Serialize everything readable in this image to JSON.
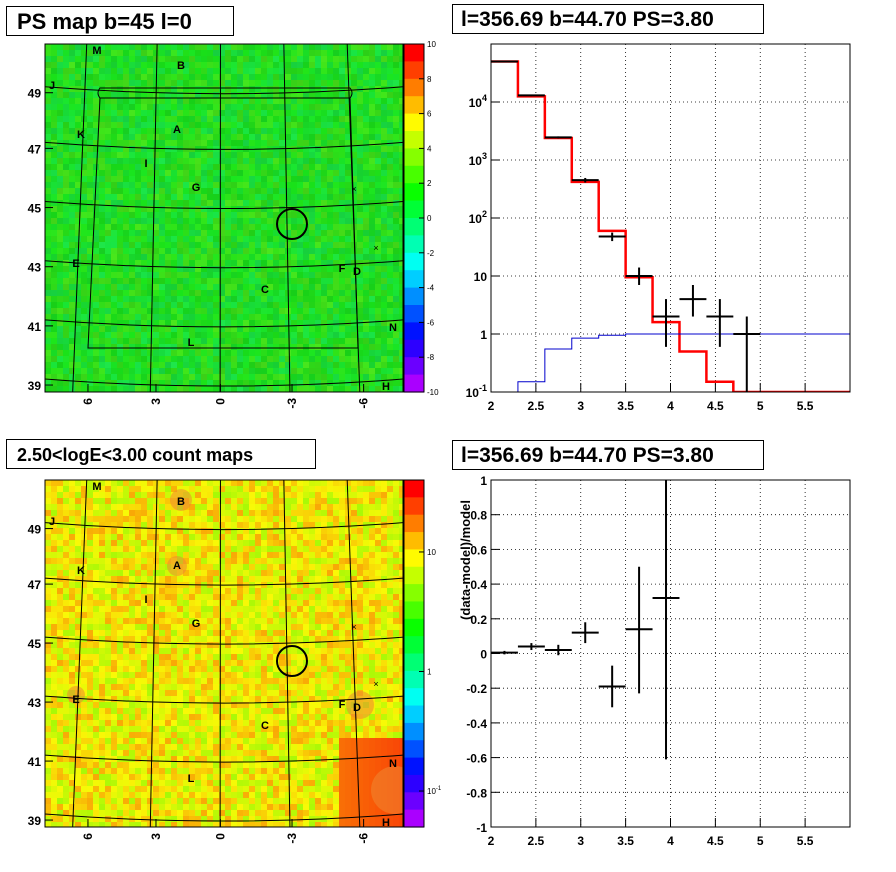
{
  "panels": {
    "ps_map_title": "PS map b=45 l=0",
    "spectrum_title": "l=356.69 b=44.70 PS=3.80",
    "count_map_title": "2.50<logE<3.00 count maps",
    "residual_title": "l=356.69 b=44.70 PS=3.80"
  },
  "colors": {
    "model": "#ff0000",
    "background": "#0000cc",
    "data": "#000000",
    "ps_map_fill": "#22ee44",
    "count_map_fill": "#bbee22"
  },
  "chart_data": [
    {
      "type": "heatmap",
      "title": "PS map b=45 l=0",
      "x_ticks": [
        "6",
        "3",
        "0",
        "-3",
        "-6"
      ],
      "y_ticks": [
        "49",
        "47",
        "45",
        "43",
        "41",
        "39"
      ],
      "colorbar": {
        "scale": "linear",
        "range": [
          -10,
          10
        ],
        "ticks": [
          "10",
          "8",
          "6",
          "4",
          "2",
          "0",
          "-2",
          "-4",
          "-6",
          "-8",
          "-10"
        ]
      },
      "region_labels": [
        "M",
        "B",
        "J",
        "A",
        "K",
        "I",
        "G",
        "E",
        "F",
        "D",
        "C",
        "N",
        "L",
        "H"
      ]
    },
    {
      "type": "line",
      "title": "l=356.69 b=44.70 PS=3.80",
      "y_scale": "log",
      "xlim": [
        2,
        6
      ],
      "ylim": [
        0.1,
        100000
      ],
      "x_ticks": [
        "2",
        "2.5",
        "3",
        "3.5",
        "4",
        "4.5",
        "5",
        "5.5"
      ],
      "y_ticks": [
        "10^-1",
        "1",
        "10",
        "10^2",
        "10^3",
        "10^4"
      ],
      "grid": true,
      "series": [
        {
          "role": "model",
          "color": "#ff0000",
          "bin_edges": [
            2.0,
            2.3,
            2.6,
            2.9,
            3.2,
            3.5,
            3.8,
            4.1,
            4.4,
            4.7,
            5.0,
            6.0
          ],
          "values": [
            50000,
            12500,
            2400,
            420,
            60,
            9.5,
            1.6,
            0.5,
            0.15,
            0.1,
            0.1
          ]
        },
        {
          "role": "background",
          "color": "#0000cc",
          "bin_edges": [
            2.0,
            2.3,
            2.6,
            2.9,
            3.2,
            3.5,
            3.8,
            4.1,
            4.4,
            4.7,
            5.0,
            6.0
          ],
          "values": [
            0.1,
            0.15,
            0.55,
            0.85,
            0.95,
            1.0,
            1.0,
            1.0,
            1.0,
            1.0,
            1.0
          ]
        },
        {
          "role": "data",
          "color": "#000000",
          "points": [
            {
              "x": 2.15,
              "xerr": 0.15,
              "y": 50000,
              "ylo": 49000,
              "yhi": 51000
            },
            {
              "x": 2.45,
              "xerr": 0.15,
              "y": 13000,
              "ylo": 12600,
              "yhi": 13400
            },
            {
              "x": 2.75,
              "xerr": 0.15,
              "y": 2450,
              "ylo": 2350,
              "yhi": 2550
            },
            {
              "x": 3.05,
              "xerr": 0.15,
              "y": 450,
              "ylo": 410,
              "yhi": 490
            },
            {
              "x": 3.35,
              "xerr": 0.15,
              "y": 48,
              "ylo": 40,
              "yhi": 56
            },
            {
              "x": 3.65,
              "xerr": 0.15,
              "y": 10,
              "ylo": 7,
              "yhi": 14
            },
            {
              "x": 3.95,
              "xerr": 0.15,
              "y": 2,
              "ylo": 0.6,
              "yhi": 4
            },
            {
              "x": 4.25,
              "xerr": 0.15,
              "y": 4,
              "ylo": 2,
              "yhi": 7
            },
            {
              "x": 4.55,
              "xerr": 0.15,
              "y": 2,
              "ylo": 0.6,
              "yhi": 4
            },
            {
              "x": 4.85,
              "xerr": 0.15,
              "y": 1,
              "ylo": 0.1,
              "yhi": 2
            }
          ]
        }
      ]
    },
    {
      "type": "heatmap",
      "title": "2.50<logE<3.00 count maps",
      "x_ticks": [
        "6",
        "3",
        "0",
        "-3",
        "-6"
      ],
      "y_ticks": [
        "49",
        "47",
        "45",
        "43",
        "41",
        "39"
      ],
      "colorbar": {
        "scale": "log",
        "range": [
          0.05,
          40
        ],
        "ticks": [
          "10",
          "1",
          "10^-1"
        ]
      },
      "region_labels": [
        "M",
        "B",
        "J",
        "A",
        "K",
        "I",
        "G",
        "E",
        "F",
        "D",
        "C",
        "N",
        "L",
        "H"
      ]
    },
    {
      "type": "scatter",
      "title": "l=356.69 b=44.70 PS=3.80",
      "ylabel": "(data-model)/model",
      "xlim": [
        2,
        6
      ],
      "ylim": [
        -1,
        1
      ],
      "x_ticks": [
        "2",
        "2.5",
        "3",
        "3.5",
        "4",
        "4.5",
        "5",
        "5.5"
      ],
      "y_ticks": [
        "-1",
        "-0.8",
        "-0.6",
        "-0.4",
        "-0.2",
        "0",
        "0.2",
        "0.4",
        "0.6",
        "0.8",
        "1"
      ],
      "grid": true,
      "points": [
        {
          "x": 2.15,
          "xerr": 0.15,
          "y": 0.005,
          "ylo": -0.005,
          "yhi": 0.015
        },
        {
          "x": 2.45,
          "xerr": 0.15,
          "y": 0.04,
          "ylo": 0.02,
          "yhi": 0.06
        },
        {
          "x": 2.75,
          "xerr": 0.15,
          "y": 0.02,
          "ylo": -0.01,
          "yhi": 0.05
        },
        {
          "x": 3.05,
          "xerr": 0.15,
          "y": 0.12,
          "ylo": 0.06,
          "yhi": 0.18
        },
        {
          "x": 3.35,
          "xerr": 0.15,
          "y": -0.19,
          "ylo": -0.31,
          "yhi": -0.07
        },
        {
          "x": 3.65,
          "xerr": 0.15,
          "y": 0.14,
          "ylo": -0.23,
          "yhi": 0.5
        },
        {
          "x": 3.95,
          "xerr": 0.15,
          "y": 0.32,
          "ylo": -0.61,
          "yhi": 1.0
        }
      ]
    }
  ]
}
